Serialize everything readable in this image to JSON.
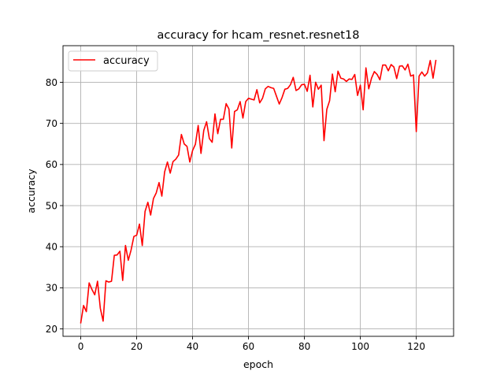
{
  "chart_data": {
    "type": "line",
    "title": "accuracy for hcam_resnet.resnet18",
    "xlabel": "epoch",
    "ylabel": "accuracy",
    "xlim": [
      -6.35,
      133.35
    ],
    "ylim": [
      18.2,
      88.9
    ],
    "xticks": [
      0,
      20,
      40,
      60,
      80,
      100,
      120
    ],
    "yticks": [
      20,
      30,
      40,
      50,
      60,
      70,
      80
    ],
    "grid": true,
    "legend_position": "upper left",
    "series": [
      {
        "name": "accuracy",
        "color": "#ff0000",
        "x": [
          0,
          1,
          2,
          3,
          4,
          5,
          6,
          7,
          8,
          9,
          10,
          11,
          12,
          13,
          14,
          15,
          16,
          17,
          18,
          19,
          20,
          21,
          22,
          23,
          24,
          25,
          26,
          27,
          28,
          29,
          30,
          31,
          32,
          33,
          34,
          35,
          36,
          37,
          38,
          39,
          40,
          41,
          42,
          43,
          44,
          45,
          46,
          47,
          48,
          49,
          50,
          51,
          52,
          53,
          54,
          55,
          56,
          57,
          58,
          59,
          60,
          61,
          62,
          63,
          64,
          65,
          66,
          67,
          68,
          69,
          70,
          71,
          72,
          73,
          74,
          75,
          76,
          77,
          78,
          79,
          80,
          81,
          82,
          83,
          84,
          85,
          86,
          87,
          88,
          89,
          90,
          91,
          92,
          93,
          94,
          95,
          96,
          97,
          98,
          99,
          100,
          101,
          102,
          103,
          104,
          105,
          106,
          107,
          108,
          109,
          110,
          111,
          112,
          113,
          114,
          115,
          116,
          117,
          118,
          119,
          120,
          121,
          122,
          123,
          124,
          125,
          126,
          127
        ],
        "values": [
          21.5,
          25.7,
          24.2,
          31.2,
          29.6,
          28.3,
          31.6,
          25.0,
          21.9,
          31.7,
          31.4,
          31.6,
          37.9,
          38.0,
          38.9,
          31.8,
          40.3,
          36.7,
          39.2,
          42.5,
          42.8,
          45.5,
          40.3,
          48.6,
          50.8,
          47.7,
          51.7,
          53.1,
          55.6,
          52.3,
          58.2,
          60.6,
          57.9,
          60.7,
          61.3,
          62.3,
          67.3,
          65.0,
          64.4,
          60.6,
          63.4,
          64.9,
          69.5,
          62.7,
          68.3,
          70.4,
          66.3,
          65.4,
          72.3,
          67.5,
          71.0,
          71.0,
          74.8,
          73.5,
          64.0,
          72.9,
          73.3,
          75.3,
          71.3,
          75.3,
          76.1,
          75.9,
          75.7,
          78.2,
          75.0,
          76.1,
          78.4,
          79.0,
          78.7,
          78.5,
          76.6,
          74.7,
          76.3,
          78.3,
          78.5,
          79.4,
          81.2,
          78.0,
          78.4,
          79.4,
          79.5,
          77.8,
          81.7,
          74.0,
          80.0,
          78.3,
          79.3,
          65.8,
          73.4,
          75.5,
          82.0,
          77.7,
          82.7,
          81.0,
          80.8,
          80.2,
          80.8,
          80.7,
          81.9,
          76.8,
          79.3,
          73.3,
          83.5,
          78.4,
          81.0,
          82.6,
          81.9,
          80.6,
          84.2,
          84.2,
          82.8,
          84.3,
          83.7,
          80.9,
          83.9,
          84.0,
          83.0,
          84.4,
          81.5,
          81.8,
          68.0,
          81.5,
          82.5,
          81.5,
          82.3,
          85.3,
          81.0,
          85.3
        ]
      }
    ]
  }
}
